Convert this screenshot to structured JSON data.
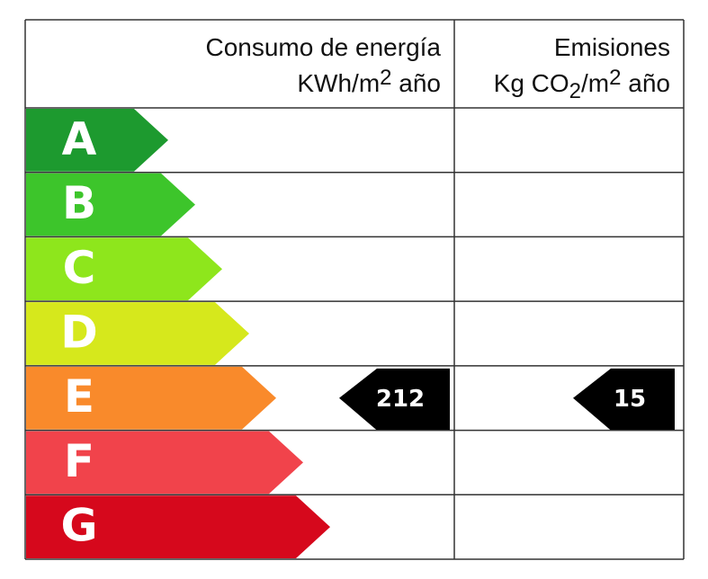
{
  "header": {
    "consumption": {
      "title": "Consumo de energía",
      "unit": [
        "KWh/m",
        "2",
        " año"
      ]
    },
    "emissions": {
      "title": "Emisiones",
      "unit": [
        "Kg CO",
        "2",
        "/m",
        "2",
        " año"
      ]
    }
  },
  "classes": [
    {
      "label": "A",
      "color": "#1d9a2f"
    },
    {
      "label": "B",
      "color": "#3dc52b"
    },
    {
      "label": "C",
      "color": "#8ee61c"
    },
    {
      "label": "D",
      "color": "#d6e81c"
    },
    {
      "label": "E",
      "color": "#f98a2b",
      "consumption": 212,
      "emissions": 15
    },
    {
      "label": "F",
      "color": "#f1434b"
    },
    {
      "label": "G",
      "color": "#d6081c"
    }
  ]
}
